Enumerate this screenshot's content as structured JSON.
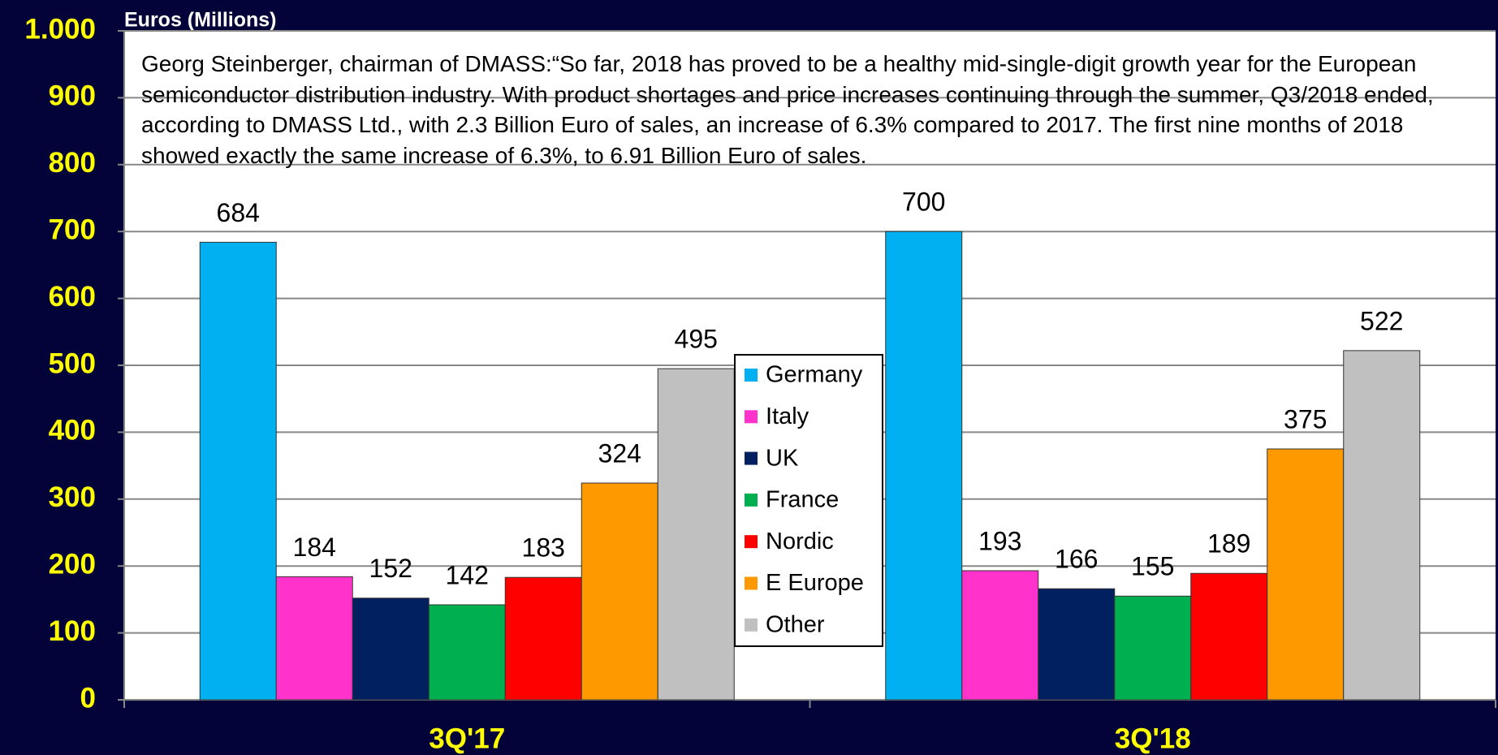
{
  "chart_data": {
    "type": "bar",
    "y_label": "Euros (Millions)",
    "annotation": "Georg Steinberger, chairman of DMASS:“So far, 2018 has proved to be a healthy mid-single-digit growth year for the European semiconductor distribution industry. With product shortages and price increases continuing through the summer, Q3/2018 ended, according to DMASS Ltd., with 2.3 Billion Euro of sales, an increase of 6.3% compared to 2017. The first nine months of 2018 showed exactly the same increase of 6.3%, to 6.91 Billion Euro of sales.",
    "categories": [
      "3Q'17",
      "3Q'18"
    ],
    "series": [
      {
        "name": "Germany",
        "color": "#00b0f0",
        "values": [
          684,
          700
        ]
      },
      {
        "name": "Italy",
        "color": "#ff33cc",
        "values": [
          184,
          193
        ]
      },
      {
        "name": "UK",
        "color": "#002060",
        "values": [
          152,
          166
        ]
      },
      {
        "name": "France",
        "color": "#00b050",
        "values": [
          142,
          155
        ]
      },
      {
        "name": "Nordic",
        "color": "#ff0000",
        "values": [
          183,
          189
        ]
      },
      {
        "name": "E Europe",
        "color": "#ff9900",
        "values": [
          324,
          375
        ]
      },
      {
        "name": "Other",
        "color": "#c0c0c0",
        "values": [
          495,
          522
        ]
      }
    ],
    "ylim": [
      0,
      1000
    ],
    "yticks": [
      0,
      100,
      200,
      300,
      400,
      500,
      600,
      700,
      800,
      900,
      {
        "value": 1000,
        "label": "1.000"
      }
    ],
    "grid": true,
    "legend": "center"
  }
}
